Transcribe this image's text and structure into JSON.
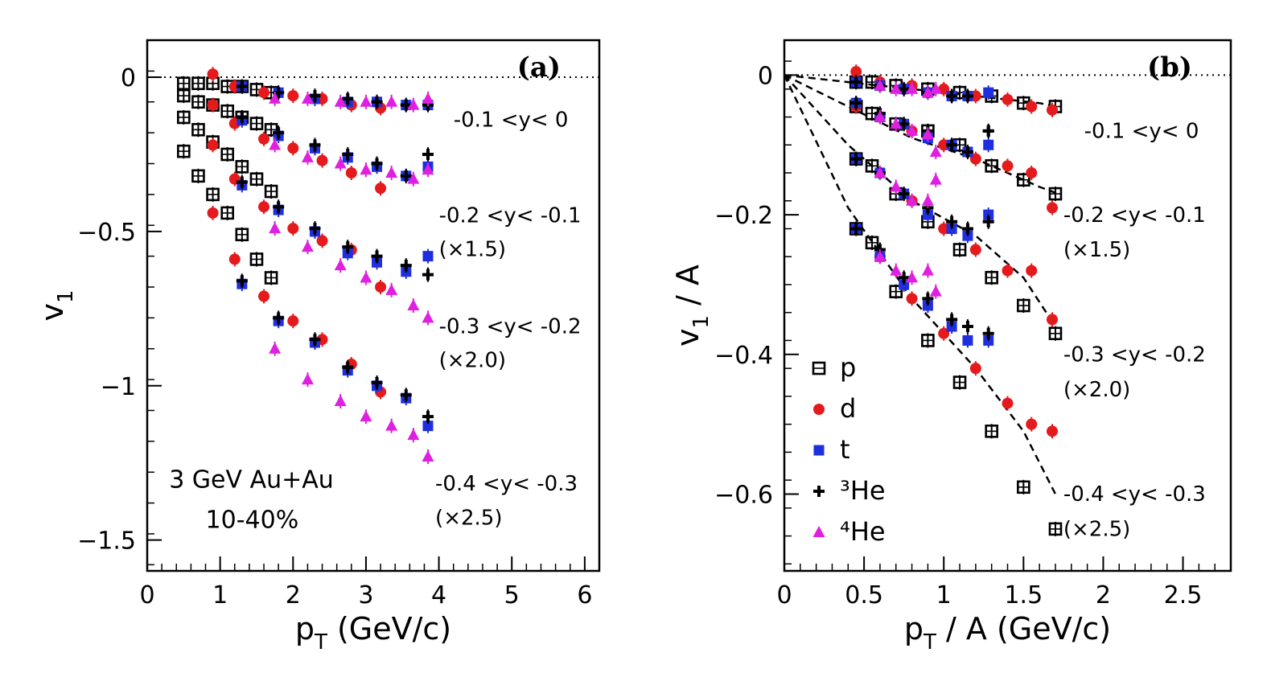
{
  "chart_data": [
    {
      "type": "scatter",
      "panel": "a",
      "panel_tag": "(a)",
      "title": "",
      "xlabel_main": "p",
      "xlabel_sub": "T",
      "xlabel_rest": " (GeV/c)",
      "ylabel_main": "v",
      "ylabel_sub": "1",
      "ylabel_rest": "",
      "xlim": [
        0,
        6.2
      ],
      "ylim": [
        -1.6,
        0.12
      ],
      "x_ticks": [
        0,
        1,
        2,
        3,
        4,
        5,
        6
      ],
      "x_tick_labels": [
        "0",
        "1",
        "2",
        "3",
        "4",
        "5",
        "6"
      ],
      "y_ticks": [
        0,
        -0.5,
        -1,
        -1.5
      ],
      "y_tick_labels": [
        "0",
        "−0.5",
        "−1",
        "−1.5"
      ],
      "reference_line_y": 0,
      "grid": false,
      "legend": "none",
      "annotations": [
        {
          "text": "3 GeV Au+Au",
          "x": 0.3,
          "y": -1.33,
          "size": "big"
        },
        {
          "text": "10-40%",
          "x": 0.8,
          "y": -1.46,
          "size": "big"
        },
        {
          "text": "-0.1 <y< 0",
          "x": 4.2,
          "y": -0.16
        },
        {
          "text": "-0.2 <y< -0.1",
          "x": 4.0,
          "y": -0.47
        },
        {
          "text": "(×1.5)",
          "x": 4.0,
          "y": -0.58
        },
        {
          "text": "-0.3 <y< -0.2",
          "x": 4.0,
          "y": -0.83
        },
        {
          "text": "(×2.0)",
          "x": 4.0,
          "y": -0.94
        },
        {
          "text": "-0.4 <y< -0.3",
          "x": 3.95,
          "y": -1.34
        },
        {
          "text": "(×2.5)",
          "x": 3.95,
          "y": -1.45
        }
      ],
      "series": [
        {
          "name": "p",
          "marker": "open-square",
          "color": "#000000",
          "x": [
            0.5,
            0.7,
            0.9,
            1.1,
            1.3,
            1.5,
            1.7
          ],
          "rapidity_bins": [
            {
              "y": [
                -0.02,
                -0.02,
                -0.02,
                -0.03,
                -0.03,
                -0.04,
                -0.05
              ]
            },
            {
              "y": [
                -0.06,
                -0.08,
                -0.09,
                -0.11,
                -0.13,
                -0.15,
                -0.17
              ]
            },
            {
              "y": [
                -0.13,
                -0.17,
                -0.21,
                -0.25,
                -0.29,
                -0.33,
                -0.37
              ]
            },
            {
              "y": [
                -0.24,
                -0.32,
                -0.38,
                -0.44,
                -0.51,
                -0.59,
                -0.65
              ]
            }
          ]
        },
        {
          "name": "d",
          "marker": "filled-circle",
          "color": "#e41a1c",
          "x": [
            0.9,
            1.2,
            1.6,
            2.0,
            2.4,
            2.8,
            3.2
          ],
          "rapidity_bins": [
            {
              "y": [
                0.01,
                -0.03,
                -0.05,
                -0.06,
                -0.07,
                -0.09,
                -0.1
              ]
            },
            {
              "y": [
                -0.09,
                -0.15,
                -0.2,
                -0.23,
                -0.27,
                -0.31,
                -0.36
              ]
            },
            {
              "y": [
                -0.22,
                -0.33,
                -0.42,
                -0.49,
                -0.53,
                -0.56,
                -0.68
              ]
            },
            {
              "y": [
                -0.44,
                -0.59,
                -0.71,
                -0.79,
                -0.85,
                -0.93,
                -1.02
              ]
            }
          ]
        },
        {
          "name": "t",
          "marker": "filled-square",
          "color": "#1f2fe0",
          "x": [
            1.3,
            1.8,
            2.3,
            2.75,
            3.15,
            3.55,
            3.85
          ],
          "rapidity_bins": [
            {
              "y": [
                -0.03,
                -0.05,
                -0.07,
                -0.08,
                -0.08,
                -0.09,
                -0.09
              ]
            },
            {
              "y": [
                -0.14,
                -0.19,
                -0.23,
                -0.26,
                -0.29,
                -0.32,
                -0.29
              ]
            },
            {
              "y": [
                -0.35,
                -0.43,
                -0.5,
                -0.57,
                -0.6,
                -0.63,
                -0.58
              ]
            },
            {
              "y": [
                -0.67,
                -0.79,
                -0.86,
                -0.95,
                -1.0,
                -1.04,
                -1.13
              ]
            }
          ]
        },
        {
          "name": "³He",
          "marker": "cross",
          "color": "#000000",
          "x": [
            1.3,
            1.8,
            2.3,
            2.75,
            3.15,
            3.55,
            3.85
          ],
          "rapidity_bins": [
            {
              "y": [
                -0.03,
                -0.05,
                -0.06,
                -0.07,
                -0.08,
                -0.09,
                -0.09
              ]
            },
            {
              "y": [
                -0.13,
                -0.18,
                -0.22,
                -0.25,
                -0.28,
                -0.32,
                -0.25
              ]
            },
            {
              "y": [
                -0.34,
                -0.42,
                -0.49,
                -0.55,
                -0.58,
                -0.61,
                -0.64
              ]
            },
            {
              "y": [
                -0.66,
                -0.78,
                -0.85,
                -0.94,
                -0.99,
                -1.03,
                -1.1
              ]
            }
          ]
        },
        {
          "name": "⁴He",
          "marker": "filled-triangle",
          "color": "#e020e0",
          "x": [
            1.75,
            2.2,
            2.65,
            3.0,
            3.35,
            3.65,
            3.85
          ],
          "rapidity_bins": [
            {
              "y": [
                -0.07,
                -0.07,
                -0.08,
                -0.08,
                -0.08,
                -0.09,
                -0.07
              ]
            },
            {
              "y": [
                -0.22,
                -0.26,
                -0.28,
                -0.3,
                -0.31,
                -0.33,
                -0.3
              ]
            },
            {
              "y": [
                -0.49,
                -0.55,
                -0.61,
                -0.65,
                -0.69,
                -0.74,
                -0.78
              ]
            },
            {
              "y": [
                -0.88,
                -0.98,
                -1.05,
                -1.1,
                -1.13,
                -1.16,
                -1.23
              ]
            }
          ]
        }
      ]
    },
    {
      "type": "scatter",
      "panel": "b",
      "panel_tag": "(b)",
      "title": "",
      "xlabel_main": "p",
      "xlabel_sub": "T",
      "xlabel_rest": " / A (GeV/c)",
      "ylabel_main": "v",
      "ylabel_sub": "1",
      "ylabel_rest": " / A",
      "xlim": [
        0,
        2.8
      ],
      "ylim": [
        -0.71,
        0.05
      ],
      "x_ticks": [
        0,
        0.5,
        1,
        1.5,
        2,
        2.5
      ],
      "x_tick_labels": [
        "0",
        "0.5",
        "1",
        "1.5",
        "2",
        "2.5"
      ],
      "y_ticks": [
        0,
        -0.2,
        -0.4,
        -0.6
      ],
      "y_tick_labels": [
        "0",
        "−0.2",
        "−0.4",
        "−0.6"
      ],
      "reference_line_y": 0,
      "grid": false,
      "legend": "bottom-left",
      "annotations": [
        {
          "text": "-0.1 <y< 0",
          "x": 1.88,
          "y": -0.09
        },
        {
          "text": "-0.2 <y< -0.1",
          "x": 1.75,
          "y": -0.21
        },
        {
          "text": "(×1.5)",
          "x": 1.75,
          "y": -0.26
        },
        {
          "text": "-0.3 <y< -0.2",
          "x": 1.75,
          "y": -0.41
        },
        {
          "text": "(×2.0)",
          "x": 1.75,
          "y": -0.46
        },
        {
          "text": "-0.4 <y< -0.3",
          "x": 1.75,
          "y": -0.61
        },
        {
          "text": "(×2.5)",
          "x": 1.75,
          "y": -0.66
        }
      ],
      "fits": [
        {
          "x": [
            0,
            0.4,
            0.8,
            1.2,
            1.6,
            1.7
          ],
          "y": [
            0,
            -0.01,
            -0.02,
            -0.03,
            -0.04,
            -0.045
          ]
        },
        {
          "x": [
            0,
            0.4,
            0.8,
            1.2,
            1.6,
            1.72
          ],
          "y": [
            0,
            -0.045,
            -0.09,
            -0.12,
            -0.16,
            -0.17
          ]
        },
        {
          "x": [
            0,
            0.4,
            0.8,
            1.2,
            1.5,
            1.7
          ],
          "y": [
            0,
            -0.1,
            -0.18,
            -0.23,
            -0.29,
            -0.36
          ]
        },
        {
          "x": [
            0,
            0.4,
            0.8,
            1.2,
            1.5,
            1.7
          ],
          "y": [
            0,
            -0.19,
            -0.32,
            -0.42,
            -0.51,
            -0.6
          ]
        }
      ],
      "series": [
        {
          "name": "p",
          "marker": "open-square",
          "color": "#000000",
          "x": [
            0.45,
            0.55,
            0.7,
            0.9,
            1.1,
            1.3,
            1.5,
            1.7
          ],
          "rapidity_bins": [
            {
              "y": [
                -0.01,
                -0.01,
                -0.015,
                -0.02,
                -0.025,
                -0.03,
                -0.04,
                -0.045
              ]
            },
            {
              "y": [
                -0.045,
                -0.055,
                -0.07,
                -0.08,
                -0.1,
                -0.13,
                -0.15,
                -0.17
              ]
            },
            {
              "y": [
                -0.12,
                -0.13,
                -0.17,
                -0.21,
                -0.25,
                -0.29,
                -0.33,
                -0.37
              ]
            },
            {
              "y": [
                -0.22,
                -0.24,
                -0.31,
                -0.38,
                -0.44,
                -0.51,
                -0.59,
                -0.65
              ]
            }
          ]
        },
        {
          "name": "d",
          "marker": "filled-circle",
          "color": "#e41a1c",
          "x": [
            0.45,
            0.6,
            0.8,
            1.0,
            1.2,
            1.4,
            1.55,
            1.68
          ],
          "rapidity_bins": [
            {
              "y": [
                0.005,
                -0.01,
                -0.015,
                -0.02,
                -0.03,
                -0.035,
                -0.045,
                -0.05
              ]
            },
            {
              "y": [
                -0.045,
                -0.06,
                -0.08,
                -0.1,
                -0.12,
                -0.13,
                -0.14,
                -0.19
              ]
            },
            {
              "y": [
                -0.12,
                -0.14,
                -0.18,
                -0.22,
                -0.25,
                -0.28,
                -0.28,
                -0.35
              ]
            },
            {
              "y": [
                -0.22,
                -0.26,
                -0.32,
                -0.37,
                -0.42,
                -0.47,
                -0.5,
                -0.51
              ]
            }
          ]
        },
        {
          "name": "t",
          "marker": "filled-square",
          "color": "#1f2fe0",
          "x": [
            0.45,
            0.6,
            0.75,
            0.9,
            1.05,
            1.15,
            1.28
          ],
          "rapidity_bins": [
            {
              "y": [
                -0.01,
                -0.015,
                -0.02,
                -0.025,
                -0.03,
                -0.03,
                -0.025
              ]
            },
            {
              "y": [
                -0.04,
                -0.06,
                -0.07,
                -0.09,
                -0.1,
                -0.11,
                -0.1
              ]
            },
            {
              "y": [
                -0.12,
                -0.14,
                -0.17,
                -0.2,
                -0.22,
                -0.23,
                -0.2
              ]
            },
            {
              "y": [
                -0.22,
                -0.26,
                -0.3,
                -0.33,
                -0.36,
                -0.38,
                -0.38
              ]
            }
          ]
        },
        {
          "name": "³He",
          "marker": "cross",
          "color": "#000000",
          "x": [
            0.45,
            0.6,
            0.75,
            0.9,
            1.05,
            1.15,
            1.28
          ],
          "rapidity_bins": [
            {
              "y": [
                -0.01,
                -0.015,
                -0.02,
                -0.025,
                -0.03,
                -0.03,
                -0.08
              ]
            },
            {
              "y": [
                -0.04,
                -0.055,
                -0.07,
                -0.08,
                -0.1,
                -0.11,
                -0.08
              ]
            },
            {
              "y": [
                -0.12,
                -0.14,
                -0.17,
                -0.19,
                -0.21,
                -0.22,
                -0.21
              ]
            },
            {
              "y": [
                -0.22,
                -0.25,
                -0.29,
                -0.32,
                -0.35,
                -0.36,
                -0.37
              ]
            }
          ]
        },
        {
          "name": "⁴He",
          "marker": "filled-triangle",
          "color": "#e020e0",
          "x": [
            0.6,
            0.7,
            0.8,
            0.9,
            0.95
          ],
          "rapidity_bins": [
            {
              "y": [
                -0.015,
                -0.02,
                -0.02,
                -0.025,
                -0.02
              ]
            },
            {
              "y": [
                -0.06,
                -0.07,
                -0.08,
                -0.085,
                -0.11
              ]
            },
            {
              "y": [
                -0.14,
                -0.16,
                -0.18,
                -0.18,
                -0.15
              ]
            },
            {
              "y": [
                -0.26,
                -0.28,
                -0.29,
                -0.28,
                -0.31
              ]
            }
          ]
        }
      ]
    }
  ]
}
